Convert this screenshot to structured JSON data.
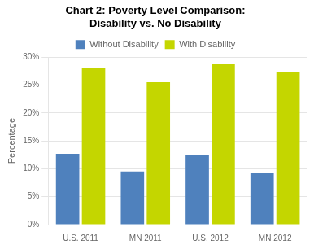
{
  "chart_data": {
    "type": "bar",
    "title": "Chart 2: Poverty Level Comparison:",
    "subtitle": "Disability vs. No Disability",
    "categories": [
      "U.S. 2011",
      "MN 2011",
      "U.S. 2012",
      "MN 2012"
    ],
    "series": [
      {
        "name": "Without Disability",
        "color": "#4f81bd",
        "values": [
          12.7,
          9.5,
          12.4,
          9.2
        ]
      },
      {
        "name": "With Disability",
        "color": "#c4d600",
        "values": [
          28.0,
          25.5,
          28.7,
          27.4
        ]
      }
    ],
    "ylabel": "Percentage",
    "ylim": [
      0,
      30
    ],
    "yticks": [
      {
        "value": 0,
        "label": "0%"
      },
      {
        "value": 5,
        "label": "5%"
      },
      {
        "value": 10,
        "label": "10%"
      },
      {
        "value": 15,
        "label": "15%"
      },
      {
        "value": 20,
        "label": "20%"
      },
      {
        "value": 25,
        "label": "25%"
      },
      {
        "value": 30,
        "label": "30%"
      }
    ],
    "grid": true,
    "legend": "top"
  }
}
